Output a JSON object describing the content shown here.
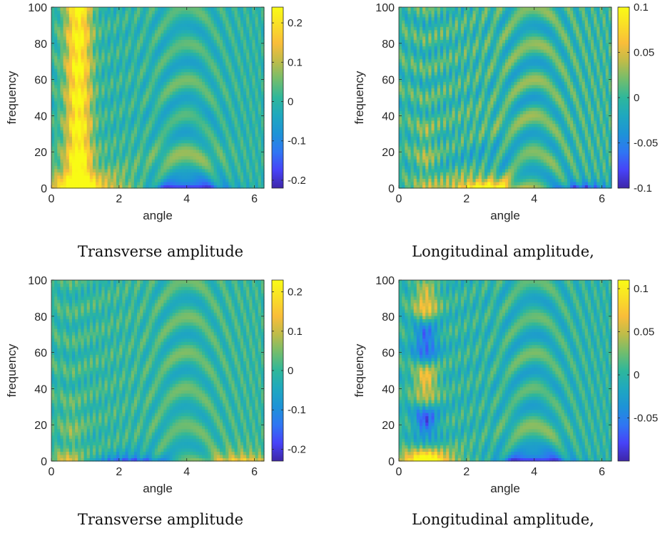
{
  "chart_data": [
    {
      "type": "heatmap",
      "panel": "top-left",
      "caption": "Transverse amplitude",
      "xlabel": "angle",
      "ylabel": "frequency",
      "xlim": [
        0,
        6.283
      ],
      "ylim": [
        0,
        100
      ],
      "xticks": [
        "0",
        "2",
        "4",
        "6"
      ],
      "yticks": [
        "0",
        "20",
        "40",
        "60",
        "80",
        "100"
      ],
      "colorbar_range": [
        -0.22,
        0.24
      ],
      "colorbar_ticks": [
        "-0.2",
        "-0.1",
        "0",
        "0.1",
        "0.2"
      ],
      "colorbar_tick_values": [
        -0.2,
        -0.1,
        0,
        0.1,
        0.2
      ],
      "features": {
        "ridge_angle": 0.8,
        "ridge_amp": 0.23,
        "ridge_width": 0.38,
        "ridge_fmax": 100,
        "low_centre_angle": 0.9,
        "low_amp": 0.2,
        "low_width": 1.6,
        "low_fdecay": 9,
        "trough_angle": 4.0,
        "trough_amp": -0.2,
        "trough_width": 1.0,
        "trough_fdecay": 2.5,
        "mid_angle": 4.0,
        "mid_amp": -0.08,
        "mid_width": 1.2,
        "mid_fdecay": 25,
        "fringe_amp": 0.05
      }
    },
    {
      "type": "heatmap",
      "panel": "top-right",
      "caption": "Longitudinal amplitude,",
      "xlabel": "angle",
      "ylabel": "frequency",
      "xlim": [
        0,
        6.283
      ],
      "ylim": [
        0,
        100
      ],
      "xticks": [
        "0",
        "2",
        "4",
        "6"
      ],
      "yticks": [
        "0",
        "20",
        "40",
        "60",
        "80",
        "100"
      ],
      "colorbar_range": [
        -0.1,
        0.1
      ],
      "colorbar_ticks": [
        "-0.1",
        "-0.05",
        "0",
        "0.05",
        "0.1"
      ],
      "colorbar_tick_values": [
        -0.1,
        -0.05,
        0,
        0.05,
        0.1
      ],
      "features": {
        "ridge_angle": 0.8,
        "ridge_amp": 0.02,
        "ridge_width": 0.3,
        "ridge_fmax": 30,
        "low_centre_angle": 2.4,
        "low_amp": 0.09,
        "low_width": 1.0,
        "low_fdecay": 4,
        "trough_angle": 5.4,
        "trough_amp": -0.09,
        "trough_width": 0.8,
        "trough_fdecay": 3,
        "mid_angle": 2.6,
        "mid_amp": 0.04,
        "mid_width": 1.0,
        "mid_fdecay": 20,
        "fringe_amp": 0.03
      }
    },
    {
      "type": "heatmap",
      "panel": "bottom-left",
      "caption": "Transverse amplitude",
      "xlabel": "angle",
      "ylabel": "frequency",
      "xlim": [
        0,
        6.283
      ],
      "ylim": [
        0,
        100
      ],
      "xticks": [
        "0",
        "2",
        "4",
        "6"
      ],
      "yticks": [
        "0",
        "20",
        "40",
        "60",
        "80",
        "100"
      ],
      "colorbar_range": [
        -0.23,
        0.23
      ],
      "colorbar_ticks": [
        "-0.2",
        "-0.1",
        "0",
        "0.1",
        "0.2"
      ],
      "colorbar_tick_values": [
        -0.2,
        -0.1,
        0,
        0.1,
        0.2
      ],
      "features": {
        "ridge_angle": 0.6,
        "ridge_amp": 0.04,
        "ridge_width": 0.35,
        "ridge_fmax": 25,
        "low_centre_angle": 5.6,
        "low_amp": 0.18,
        "low_width": 1.0,
        "low_fdecay": 4,
        "trough_angle": 2.4,
        "trough_amp": -0.21,
        "trough_width": 1.0,
        "trough_fdecay": 3,
        "mid_angle": 0.4,
        "mid_amp": 0.08,
        "mid_width": 0.4,
        "mid_fdecay": 6,
        "fringe_amp": 0.05
      }
    },
    {
      "type": "heatmap",
      "panel": "bottom-right",
      "caption": "Longitudinal amplitude,",
      "xlabel": "angle",
      "ylabel": "frequency",
      "xlim": [
        0,
        6.283
      ],
      "ylim": [
        0,
        100
      ],
      "xticks": [
        "0",
        "2",
        "4",
        "6"
      ],
      "yticks": [
        "0",
        "20",
        "40",
        "60",
        "80",
        "100"
      ],
      "colorbar_range": [
        -0.1,
        0.11
      ],
      "colorbar_ticks": [
        "-0.05",
        "0",
        "0.05",
        "0.1"
      ],
      "colorbar_tick_values": [
        -0.05,
        0,
        0.05,
        0.1
      ],
      "features": {
        "ridge_angle": 0.8,
        "ridge_amp": 0.07,
        "ridge_width": 0.35,
        "ridge_fmax": 100,
        "ridge_oscillate": true,
        "low_centre_angle": 0.8,
        "low_amp": 0.1,
        "low_width": 1.1,
        "low_fdecay": 5,
        "trough_angle": 4.0,
        "trough_amp": -0.1,
        "trough_width": 1.0,
        "trough_fdecay": 2.5,
        "mid_angle": 4.0,
        "mid_amp": -0.03,
        "mid_width": 1.0,
        "mid_fdecay": 20,
        "fringe_amp": 0.025
      }
    }
  ],
  "colormap": [
    "#3e26a8",
    "#4743f8",
    "#2f76f3",
    "#1d93d7",
    "#1fa8bf",
    "#2eb79b",
    "#72bd6d",
    "#bebc49",
    "#f9bd3a",
    "#f9de27",
    "#f9fb15"
  ]
}
